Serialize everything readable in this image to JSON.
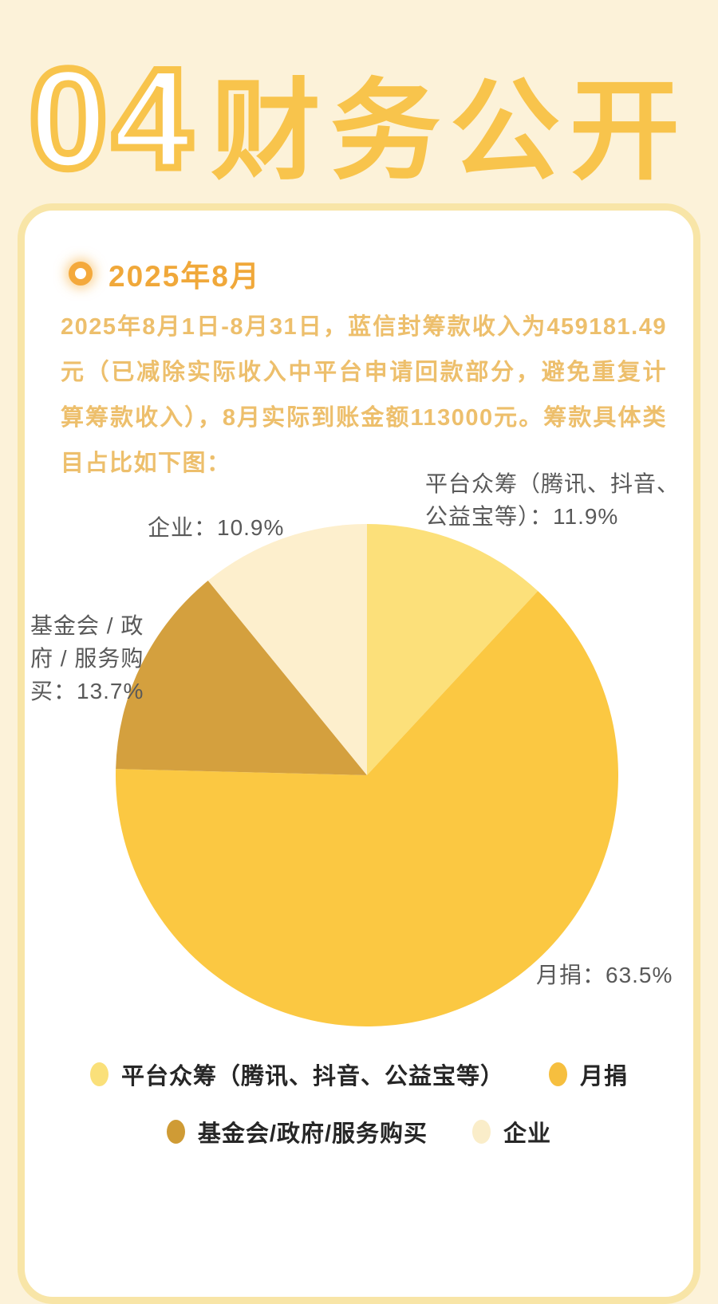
{
  "page": {
    "background": "#FCF2D9",
    "card_border": "#F8E5A7"
  },
  "title": {
    "number": "04",
    "text": "财务公开",
    "accent_color": "#F8C44C"
  },
  "section": {
    "heading": "2025年8月"
  },
  "paragraph": "2025年8月1日-8月31日，蓝信封筹款收入为459181.49元（已减除实际收入中平台申请回款部分，避免重复计算筹款收入），8月实际到账金额113000元。筹款具体类目占比如下图：",
  "chart_data": {
    "type": "pie",
    "labels": [
      "平台众筹（腾讯、抖音、公益宝等）",
      "月捐",
      "基金会/政府/服务购买",
      "企业"
    ],
    "values": [
      11.9,
      63.5,
      13.7,
      10.9
    ],
    "colors": [
      "#FCE07A",
      "#FBC842",
      "#D4A03E",
      "#FDEFCD"
    ],
    "start_angle_deg": -90,
    "direction": "clockwise",
    "legend_position": "bottom",
    "annotations": [
      "平台众筹（腾讯、抖音、公益宝等）：11.9%",
      "月捐：63.5%",
      "基金会/政府/服务购买：13.7%",
      "企业：10.9%"
    ]
  },
  "slice_labels": {
    "platform": "平台众筹（腾讯、抖音、\n公益宝等）：11.9%",
    "enterprise": "企业：10.9%",
    "foundation": "基金会 / 政\n府 / 服务购\n买：13.7%",
    "monthly": "月捐：63.5%"
  },
  "legend": {
    "items": [
      {
        "label": "平台众筹（腾讯、抖音、公益宝等）",
        "color": "#FAE07A"
      },
      {
        "label": "月捐",
        "color": "#F6BF3F"
      },
      {
        "label": "基金会/政府/服务购买",
        "color": "#CF9B35"
      },
      {
        "label": "企业",
        "color": "#FAEDC9"
      }
    ]
  }
}
